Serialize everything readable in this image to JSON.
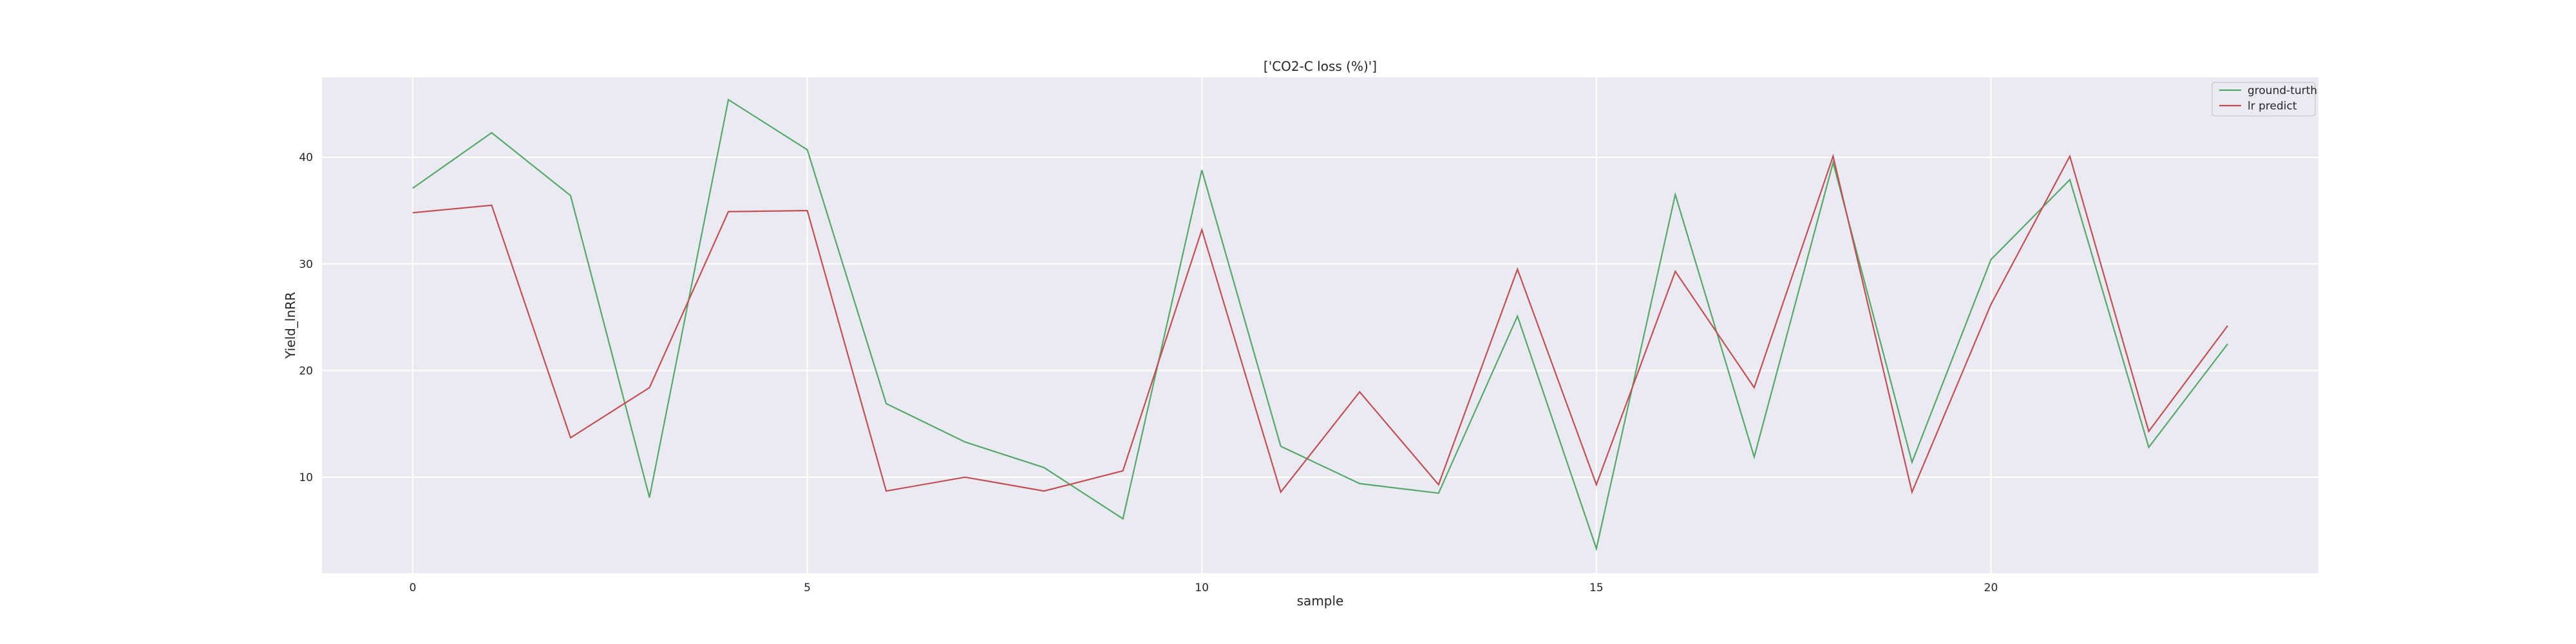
{
  "chart_data": {
    "type": "line",
    "title": "['CO2-C loss (%)']",
    "xlabel": "sample",
    "ylabel": "Yield_lnRR",
    "x": [
      0,
      1,
      2,
      3,
      4,
      5,
      6,
      7,
      8,
      9,
      10,
      11,
      12,
      13,
      14,
      15,
      16,
      17,
      18,
      19,
      20,
      21,
      22,
      23
    ],
    "xlim": [
      -1.15,
      24.15
    ],
    "ylim": [
      1.0,
      47.5
    ],
    "xticks": [
      0,
      5,
      10,
      15,
      20
    ],
    "yticks": [
      10,
      20,
      30,
      40
    ],
    "grid": true,
    "legend_position": "top-right",
    "series": [
      {
        "name": "ground-turth",
        "color": "#55A868",
        "values": [
          37.1,
          42.3,
          36.4,
          8.1,
          45.4,
          40.7,
          16.9,
          13.3,
          10.9,
          6.1,
          38.8,
          12.9,
          9.4,
          8.5,
          25.1,
          3.3,
          36.5,
          11.9,
          39.5,
          11.4,
          30.4,
          37.9,
          12.8,
          22.5
        ]
      },
      {
        "name": "lr predict",
        "color": "#C44E52",
        "values": [
          34.8,
          35.5,
          13.7,
          18.4,
          34.9,
          35.0,
          8.7,
          10.0,
          8.7,
          10.6,
          33.2,
          8.6,
          18.0,
          9.3,
          29.5,
          9.3,
          29.3,
          18.4,
          40.1,
          8.6,
          26.2,
          40.1,
          14.3,
          24.2
        ]
      }
    ]
  }
}
